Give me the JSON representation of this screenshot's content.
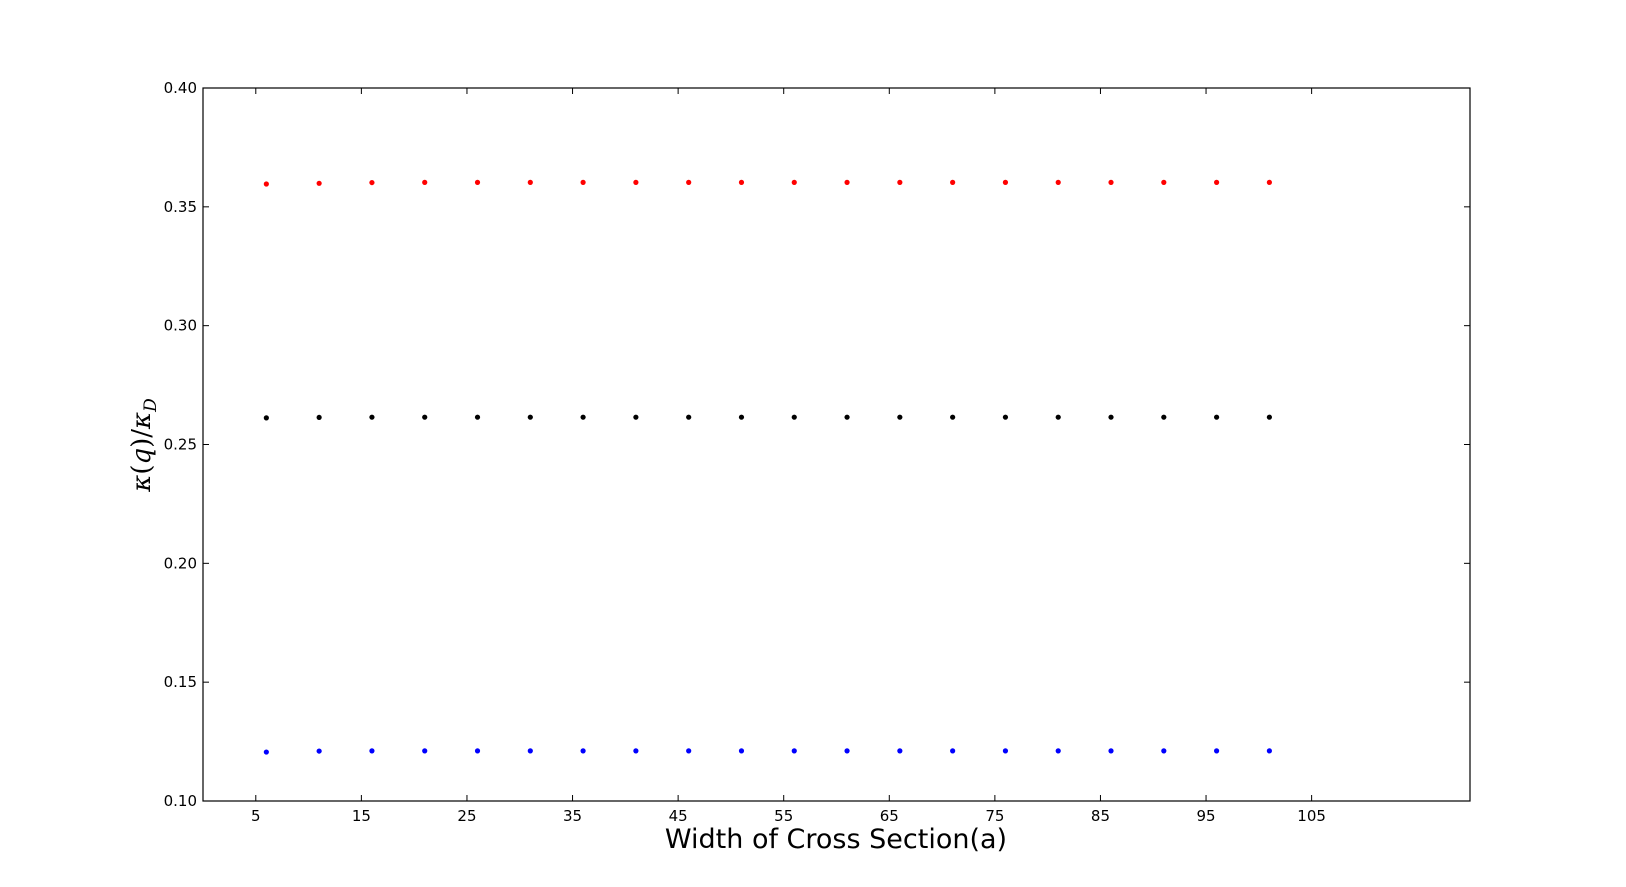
{
  "chart_data": {
    "type": "scatter",
    "title": "",
    "xlabel": "Width of Cross Section(a)",
    "ylabel": {
      "kappa": "κ",
      "open": "(",
      "q": "q",
      "close": ")/",
      "kappa2": "κ",
      "sub": "D"
    },
    "xlim": [
      0,
      120
    ],
    "ylim": [
      0.1,
      0.4
    ],
    "xticks": [
      5,
      15,
      25,
      35,
      45,
      55,
      65,
      75,
      85,
      95,
      105
    ],
    "xtick_labels": [
      "5",
      "15",
      "25",
      "35",
      "45",
      "55",
      "65",
      "75",
      "85",
      "95",
      "105"
    ],
    "yticks": [
      0.1,
      0.15,
      0.2,
      0.25,
      0.3,
      0.35,
      0.4
    ],
    "ytick_labels": [
      "0.10",
      "0.15",
      "0.20",
      "0.25",
      "0.30",
      "0.35",
      "0.40"
    ],
    "grid": false,
    "legend": "none",
    "x": [
      6,
      11,
      16,
      21,
      26,
      31,
      36,
      41,
      46,
      51,
      56,
      61,
      66,
      71,
      76,
      81,
      86,
      91,
      96,
      101
    ],
    "series": [
      {
        "color": "#ff0000",
        "values": [
          0.3596,
          0.3599,
          0.3602,
          0.3603,
          0.3603,
          0.3603,
          0.3603,
          0.3603,
          0.3603,
          0.3603,
          0.3603,
          0.3603,
          0.3603,
          0.3603,
          0.3603,
          0.3603,
          0.3603,
          0.3603,
          0.3603,
          0.3603
        ]
      },
      {
        "color": "#000000",
        "values": [
          0.2612,
          0.2614,
          0.2615,
          0.2615,
          0.2615,
          0.2615,
          0.2615,
          0.2615,
          0.2615,
          0.2615,
          0.2615,
          0.2615,
          0.2615,
          0.2615,
          0.2615,
          0.2615,
          0.2615,
          0.2615,
          0.2615,
          0.2615
        ]
      },
      {
        "color": "#0000ff",
        "values": [
          0.1206,
          0.121,
          0.1211,
          0.1211,
          0.1211,
          0.1211,
          0.1211,
          0.1211,
          0.1211,
          0.1211,
          0.1211,
          0.1211,
          0.1211,
          0.1211,
          0.1211,
          0.1211,
          0.1211,
          0.1211,
          0.1211,
          0.1211
        ]
      }
    ]
  }
}
